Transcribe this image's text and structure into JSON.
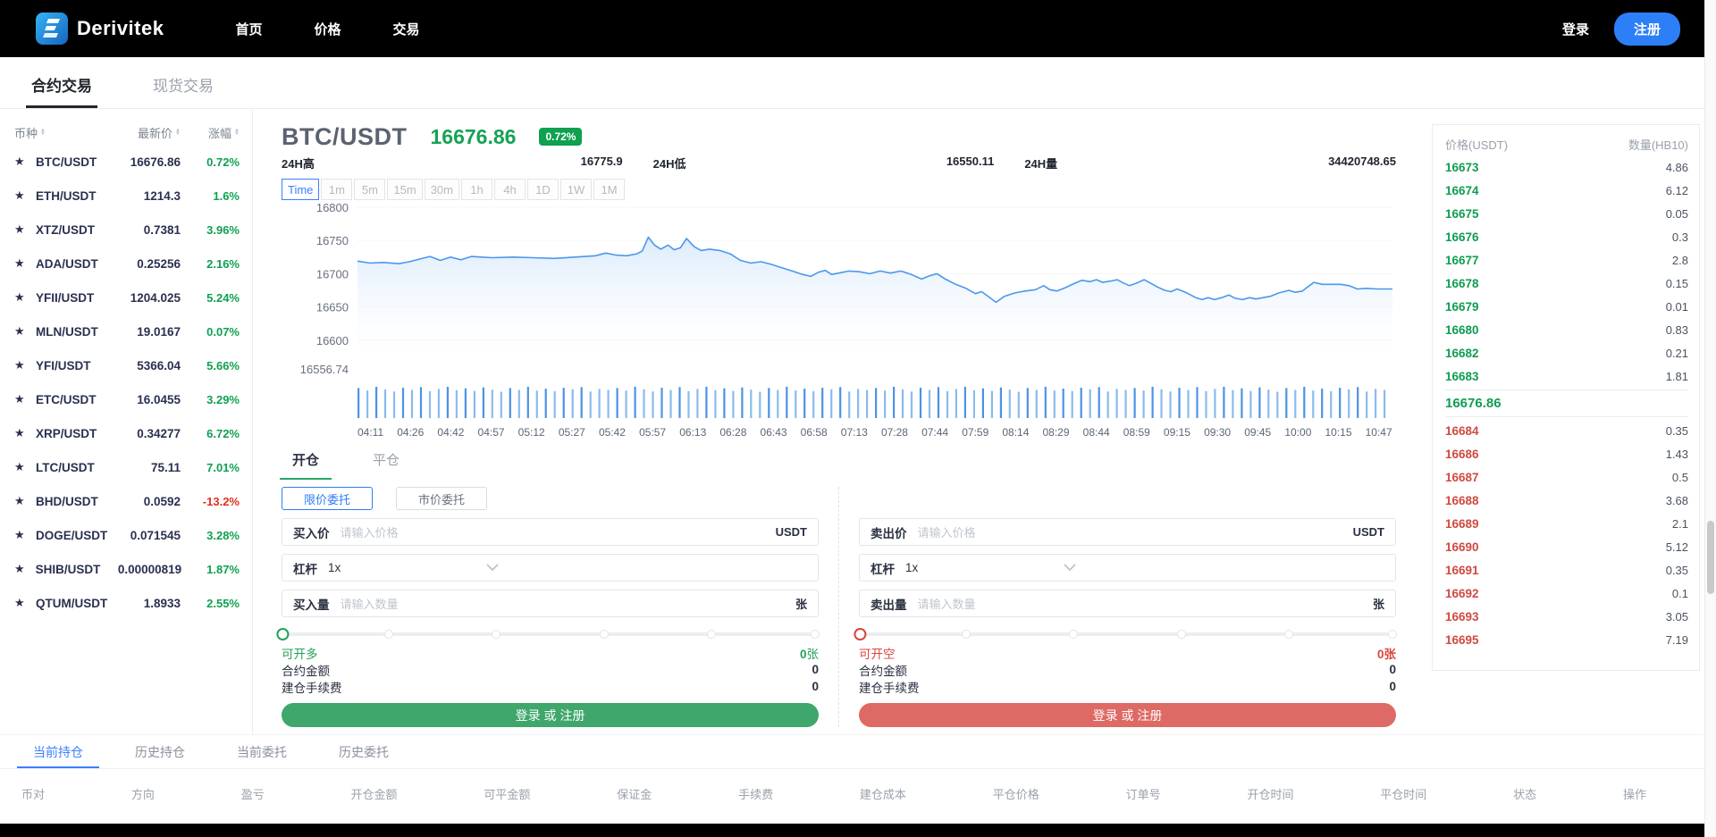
{
  "brand": {
    "name": "Derivitek"
  },
  "navbar": {
    "links": [
      "首页",
      "价格",
      "交易"
    ],
    "login": "登录",
    "register": "注册"
  },
  "market_tabs": {
    "contract": "合约交易",
    "spot": "现货交易",
    "active": "合约交易"
  },
  "watchlist": {
    "headers": {
      "pair": "币种",
      "price": "最新价",
      "change": "涨幅"
    },
    "coins": [
      {
        "pair": "BTC/USDT",
        "price": "16676.86",
        "change": "0.72%",
        "up": true
      },
      {
        "pair": "ETH/USDT",
        "price": "1214.3",
        "change": "1.6%",
        "up": true
      },
      {
        "pair": "XTZ/USDT",
        "price": "0.7381",
        "change": "3.96%",
        "up": true
      },
      {
        "pair": "ADA/USDT",
        "price": "0.25256",
        "change": "2.16%",
        "up": true
      },
      {
        "pair": "YFII/USDT",
        "price": "1204.025",
        "change": "5.24%",
        "up": true
      },
      {
        "pair": "MLN/USDT",
        "price": "19.0167",
        "change": "0.07%",
        "up": true
      },
      {
        "pair": "YFI/USDT",
        "price": "5366.04",
        "change": "5.66%",
        "up": true
      },
      {
        "pair": "ETC/USDT",
        "price": "16.0455",
        "change": "3.29%",
        "up": true
      },
      {
        "pair": "XRP/USDT",
        "price": "0.34277",
        "change": "6.72%",
        "up": true
      },
      {
        "pair": "LTC/USDT",
        "price": "75.11",
        "change": "7.01%",
        "up": true
      },
      {
        "pair": "BHD/USDT",
        "price": "0.0592",
        "change": "-13.2%",
        "up": false
      },
      {
        "pair": "DOGE/USDT",
        "price": "0.071545",
        "change": "3.28%",
        "up": true
      },
      {
        "pair": "SHIB/USDT",
        "price": "0.00000819",
        "change": "1.87%",
        "up": true
      },
      {
        "pair": "QTUM/USDT",
        "price": "1.8933",
        "change": "2.55%",
        "up": true
      }
    ]
  },
  "ticker": {
    "symbol": "BTC/USDT",
    "last_price": "16676.86",
    "change_badge": "0.72%",
    "high_label": "24H高",
    "high": "16775.9",
    "low_label": "24H低",
    "low": "16550.11",
    "volume_label": "24H量",
    "volume": "34420748.65"
  },
  "timeframes": {
    "options": [
      "Time",
      "1m",
      "5m",
      "15m",
      "30m",
      "1h",
      "4h",
      "1D",
      "1W",
      "1M"
    ],
    "active": "Time"
  },
  "chart_data": {
    "type": "area",
    "title": "BTC/USDT",
    "y_range": [
      16556.74,
      16800
    ],
    "y_ticks": [
      16800,
      16750,
      16700,
      16650,
      16600
    ],
    "y_min_label": "16556.74",
    "x_labels": [
      "04:11",
      "04:26",
      "04:42",
      "04:57",
      "05:12",
      "05:27",
      "05:42",
      "05:57",
      "06:13",
      "06:28",
      "06:43",
      "06:58",
      "07:13",
      "07:28",
      "07:44",
      "07:59",
      "08:14",
      "08:29",
      "08:44",
      "08:59",
      "09:15",
      "09:30",
      "09:45",
      "10:00",
      "10:15",
      "10:47"
    ],
    "line_color": "#4b97ec",
    "grid": true,
    "points": [
      [
        0,
        16719
      ],
      [
        0.012,
        16716
      ],
      [
        0.025,
        16717
      ],
      [
        0.04,
        16715
      ],
      [
        0.05,
        16718
      ],
      [
        0.06,
        16722
      ],
      [
        0.07,
        16726
      ],
      [
        0.08,
        16720
      ],
      [
        0.09,
        16725
      ],
      [
        0.1,
        16721
      ],
      [
        0.11,
        16726
      ],
      [
        0.12,
        16725
      ],
      [
        0.13,
        16724
      ],
      [
        0.15,
        16725
      ],
      [
        0.17,
        16724
      ],
      [
        0.19,
        16723
      ],
      [
        0.21,
        16725
      ],
      [
        0.23,
        16727
      ],
      [
        0.24,
        16731
      ],
      [
        0.25,
        16728
      ],
      [
        0.26,
        16727
      ],
      [
        0.27,
        16730
      ],
      [
        0.275,
        16734
      ],
      [
        0.281,
        16755
      ],
      [
        0.287,
        16743
      ],
      [
        0.293,
        16737
      ],
      [
        0.3,
        16743
      ],
      [
        0.306,
        16736
      ],
      [
        0.312,
        16739
      ],
      [
        0.318,
        16753
      ],
      [
        0.325,
        16741
      ],
      [
        0.332,
        16735
      ],
      [
        0.34,
        16737
      ],
      [
        0.35,
        16735
      ],
      [
        0.36,
        16730
      ],
      [
        0.37,
        16720
      ],
      [
        0.38,
        16716
      ],
      [
        0.39,
        16718
      ],
      [
        0.4,
        16714
      ],
      [
        0.41,
        16709
      ],
      [
        0.42,
        16704
      ],
      [
        0.43,
        16699
      ],
      [
        0.438,
        16696
      ],
      [
        0.445,
        16702
      ],
      [
        0.452,
        16705
      ],
      [
        0.458,
        16699
      ],
      [
        0.465,
        16701
      ],
      [
        0.475,
        16704
      ],
      [
        0.485,
        16703
      ],
      [
        0.495,
        16700
      ],
      [
        0.505,
        16704
      ],
      [
        0.515,
        16701
      ],
      [
        0.525,
        16704
      ],
      [
        0.535,
        16699
      ],
      [
        0.545,
        16692
      ],
      [
        0.553,
        16697
      ],
      [
        0.56,
        16700
      ],
      [
        0.568,
        16692
      ],
      [
        0.578,
        16684
      ],
      [
        0.588,
        16678
      ],
      [
        0.597,
        16670
      ],
      [
        0.603,
        16673
      ],
      [
        0.61,
        16665
      ],
      [
        0.617,
        16657
      ],
      [
        0.625,
        16666
      ],
      [
        0.635,
        16671
      ],
      [
        0.645,
        16674
      ],
      [
        0.655,
        16676
      ],
      [
        0.663,
        16682
      ],
      [
        0.669,
        16676
      ],
      [
        0.676,
        16674
      ],
      [
        0.684,
        16679
      ],
      [
        0.692,
        16685
      ],
      [
        0.7,
        16690
      ],
      [
        0.708,
        16688
      ],
      [
        0.714,
        16691
      ],
      [
        0.72,
        16687
      ],
      [
        0.728,
        16689
      ],
      [
        0.734,
        16691
      ],
      [
        0.74,
        16686
      ],
      [
        0.746,
        16682
      ],
      [
        0.753,
        16686
      ],
      [
        0.76,
        16691
      ],
      [
        0.766,
        16686
      ],
      [
        0.773,
        16680
      ],
      [
        0.78,
        16675
      ],
      [
        0.786,
        16673
      ],
      [
        0.792,
        16677
      ],
      [
        0.8,
        16672
      ],
      [
        0.81,
        16664
      ],
      [
        0.816,
        16661
      ],
      [
        0.822,
        16664
      ],
      [
        0.828,
        16661
      ],
      [
        0.835,
        16664
      ],
      [
        0.842,
        16668
      ],
      [
        0.848,
        16663
      ],
      [
        0.855,
        16661
      ],
      [
        0.862,
        16664
      ],
      [
        0.868,
        16662
      ],
      [
        0.875,
        16664
      ],
      [
        0.882,
        16666
      ],
      [
        0.89,
        16671
      ],
      [
        0.9,
        16675
      ],
      [
        0.906,
        16672
      ],
      [
        0.913,
        16674
      ],
      [
        0.918,
        16680
      ],
      [
        0.924,
        16687
      ],
      [
        0.932,
        16684
      ],
      [
        0.94,
        16684
      ],
      [
        0.95,
        16684
      ],
      [
        0.958,
        16682
      ],
      [
        0.966,
        16677
      ],
      [
        0.975,
        16678
      ],
      [
        0.985,
        16677
      ],
      [
        1,
        16677
      ]
    ],
    "volume_bars": 116,
    "volume_pattern": [
      0.96,
      0.88,
      1.0,
      0.92,
      0.85,
      0.97,
      0.9,
      0.99,
      0.86,
      0.93,
      1.0,
      0.89,
      0.95,
      0.87,
      0.98,
      0.91,
      0.84,
      0.96,
      0.9,
      1.0,
      0.88,
      0.94,
      0.86,
      0.97,
      0.92,
      0.99,
      0.85,
      0.93,
      0.9
    ]
  },
  "order_form": {
    "tabs": {
      "open": "开仓",
      "close": "平仓",
      "active": "开仓"
    },
    "order_types": {
      "limit": "限价委托",
      "market": "市价委托",
      "active": "限价委托"
    },
    "buy": {
      "price_label": "买入价",
      "price_placeholder": "请输入价格",
      "price_unit": "USDT",
      "leverage_label": "杠杆",
      "leverage_value": "1x",
      "amount_label": "买入量",
      "amount_placeholder": "请输入数量",
      "amount_unit": "张",
      "available_label": "可开多",
      "available_value": "0",
      "available_unit": "张",
      "contract_amount_label": "合约金额",
      "contract_amount_value": "0",
      "fee_label": "建仓手续费",
      "fee_value": "0",
      "submit": "登录 或 注册"
    },
    "sell": {
      "price_label": "卖出价",
      "price_placeholder": "请输入价格",
      "price_unit": "USDT",
      "leverage_label": "杠杆",
      "leverage_value": "1x",
      "amount_label": "卖出量",
      "amount_placeholder": "请输入数量",
      "amount_unit": "张",
      "available_label": "可开空",
      "available_value": "0",
      "available_unit": "张",
      "contract_amount_label": "合约金额",
      "contract_amount_value": "0",
      "fee_label": "建仓手续费",
      "fee_value": "0",
      "submit": "登录 或 注册"
    }
  },
  "orderbook": {
    "price_header": "价格(USDT)",
    "qty_header": "数量(HB10)",
    "bids": [
      [
        "16673",
        "4.86"
      ],
      [
        "16674",
        "6.12"
      ],
      [
        "16675",
        "0.05"
      ],
      [
        "16676",
        "0.3"
      ],
      [
        "16677",
        "2.8"
      ],
      [
        "16678",
        "0.15"
      ],
      [
        "16679",
        "0.01"
      ],
      [
        "16680",
        "0.83"
      ],
      [
        "16682",
        "0.21"
      ],
      [
        "16683",
        "1.81"
      ]
    ],
    "current": "16676.86",
    "asks": [
      [
        "16684",
        "0.35"
      ],
      [
        "16686",
        "1.43"
      ],
      [
        "16687",
        "0.5"
      ],
      [
        "16688",
        "3.68"
      ],
      [
        "16689",
        "2.1"
      ],
      [
        "16690",
        "5.12"
      ],
      [
        "16691",
        "0.35"
      ],
      [
        "16692",
        "0.1"
      ],
      [
        "16693",
        "3.05"
      ],
      [
        "16695",
        "7.19"
      ]
    ]
  },
  "positions": {
    "tabs": [
      "当前持仓",
      "历史持仓",
      "当前委托",
      "历史委托"
    ],
    "active_tab": "当前持仓",
    "headers": [
      "币对",
      "方向",
      "盈亏",
      "开仓金额",
      "可平金额",
      "保证金",
      "手续费",
      "建仓成本",
      "平仓价格",
      "订单号",
      "开仓时间",
      "平仓时间",
      "状态",
      "操作"
    ],
    "rows": []
  },
  "colors": {
    "up_green": "#0fa050",
    "down_red": "#e0301e",
    "ask_red": "#cf4a41",
    "accent_blue": "#2f7cf6",
    "register_blue": "#2d7ff7",
    "button_green": "#3fa76b",
    "button_red": "#dd6a64",
    "line_blue": "#4b97ec"
  }
}
